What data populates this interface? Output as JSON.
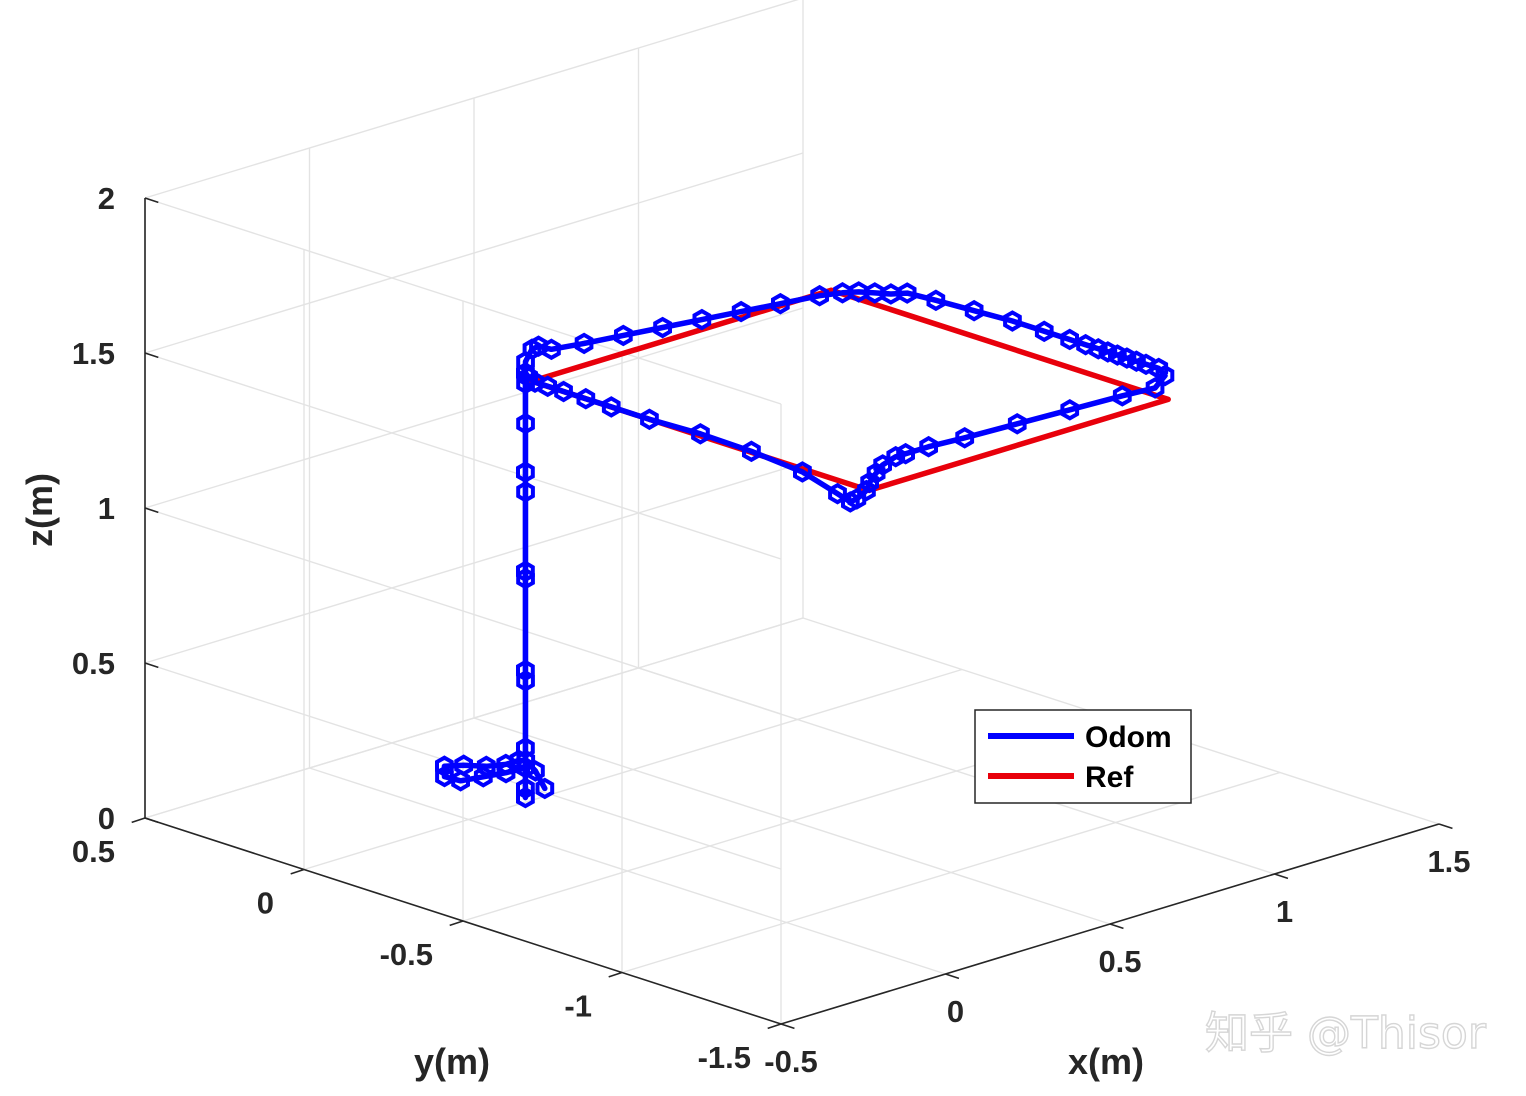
{
  "chart_data": {
    "type": "line",
    "dimensions": "3d",
    "xlabel": "x(m)",
    "ylabel": "y(m)",
    "zlabel": "z(m)",
    "xlim": [
      -0.5,
      1.5
    ],
    "ylim": [
      -1.5,
      0.5
    ],
    "zlim": [
      0,
      2
    ],
    "x_ticks": [
      {
        "value": -0.5,
        "label": "-0.5"
      },
      {
        "value": 0,
        "label": "0"
      },
      {
        "value": 0.5,
        "label": "0.5"
      },
      {
        "value": 1,
        "label": "1"
      },
      {
        "value": 1.5,
        "label": "1.5"
      }
    ],
    "y_ticks": [
      {
        "value": -1.5,
        "label": "-1.5"
      },
      {
        "value": -1,
        "label": "-1"
      },
      {
        "value": -0.5,
        "label": "-0.5"
      },
      {
        "value": 0,
        "label": "0"
      },
      {
        "value": 0.5,
        "label": "0.5"
      }
    ],
    "z_ticks": [
      {
        "value": 0,
        "label": "0"
      },
      {
        "value": 0.5,
        "label": "0.5"
      },
      {
        "value": 1,
        "label": "1"
      },
      {
        "value": 1.5,
        "label": "1.5"
      },
      {
        "value": 2,
        "label": "2"
      }
    ],
    "grid": true,
    "legend_position": "lower-right",
    "series": [
      {
        "name": "Odom",
        "color": "#0000ff",
        "marker": "hexagon",
        "points": [
          [
            0.0,
            -0.24,
            0.18
          ],
          [
            0.01,
            -0.2,
            0.22
          ],
          [
            0.0,
            -0.18,
            0.25
          ],
          [
            -0.04,
            -0.2,
            0.27
          ],
          [
            -0.08,
            -0.2,
            0.27
          ],
          [
            -0.12,
            -0.18,
            0.27
          ],
          [
            -0.15,
            -0.14,
            0.27
          ],
          [
            -0.17,
            -0.1,
            0.26
          ],
          [
            -0.16,
            -0.09,
            0.22
          ],
          [
            -0.14,
            -0.12,
            0.21
          ],
          [
            -0.1,
            -0.15,
            0.22
          ],
          [
            -0.06,
            -0.18,
            0.23
          ],
          [
            -0.02,
            -0.2,
            0.24
          ],
          [
            -0.02,
            -0.2,
            0.52
          ],
          [
            -0.02,
            -0.2,
            0.85
          ],
          [
            -0.02,
            -0.2,
            1.13
          ],
          [
            -0.02,
            -0.2,
            1.35
          ],
          [
            -0.02,
            -0.2,
            1.48
          ],
          [
            -0.02,
            -0.2,
            1.55
          ],
          [
            -0.01,
            -0.21,
            1.59
          ],
          [
            0.0,
            -0.22,
            1.6
          ],
          [
            0.02,
            -0.24,
            1.59
          ],
          [
            0.1,
            -0.26,
            1.59
          ],
          [
            0.2,
            -0.28,
            1.59
          ],
          [
            0.3,
            -0.3,
            1.59
          ],
          [
            0.4,
            -0.32,
            1.59
          ],
          [
            0.5,
            -0.34,
            1.59
          ],
          [
            0.6,
            -0.36,
            1.59
          ],
          [
            0.7,
            -0.38,
            1.59
          ],
          [
            0.75,
            -0.4,
            1.59
          ],
          [
            0.78,
            -0.42,
            1.59
          ],
          [
            0.8,
            -0.45,
            1.59
          ],
          [
            0.82,
            -0.48,
            1.59
          ],
          [
            0.85,
            -0.5,
            1.59
          ],
          [
            0.86,
            -0.58,
            1.59
          ],
          [
            0.87,
            -0.69,
            1.59
          ],
          [
            0.88,
            -0.8,
            1.59
          ],
          [
            0.88,
            -0.9,
            1.59
          ],
          [
            0.88,
            -0.98,
            1.59
          ],
          [
            0.88,
            -1.03,
            1.59
          ],
          [
            0.88,
            -1.07,
            1.59
          ],
          [
            0.88,
            -1.1,
            1.59
          ],
          [
            0.88,
            -1.13,
            1.59
          ],
          [
            0.88,
            -1.16,
            1.59
          ],
          [
            0.88,
            -1.19,
            1.59
          ],
          [
            0.88,
            -1.22,
            1.59
          ],
          [
            0.88,
            -1.26,
            1.59
          ],
          [
            0.87,
            -1.29,
            1.58
          ],
          [
            0.84,
            -1.29,
            1.55
          ],
          [
            0.75,
            -1.28,
            1.55
          ],
          [
            0.6,
            -1.27,
            1.55
          ],
          [
            0.45,
            -1.26,
            1.55
          ],
          [
            0.3,
            -1.25,
            1.55
          ],
          [
            0.2,
            -1.24,
            1.55
          ],
          [
            0.13,
            -1.24,
            1.55
          ],
          [
            0.1,
            -1.24,
            1.55
          ],
          [
            0.07,
            -1.23,
            1.53
          ],
          [
            0.05,
            -1.23,
            1.51
          ],
          [
            0.04,
            -1.22,
            1.48
          ],
          [
            0.04,
            -1.21,
            1.45
          ],
          [
            0.03,
            -1.19,
            1.42
          ],
          [
            0.02,
            -1.18,
            1.41
          ],
          [
            0.01,
            -1.15,
            1.43
          ],
          [
            0.0,
            -1.05,
            1.47
          ],
          [
            -0.01,
            -0.9,
            1.49
          ],
          [
            -0.02,
            -0.75,
            1.5
          ],
          [
            -0.03,
            -0.6,
            1.5
          ],
          [
            -0.03,
            -0.48,
            1.5
          ],
          [
            -0.03,
            -0.4,
            1.5
          ],
          [
            -0.03,
            -0.33,
            1.5
          ],
          [
            -0.03,
            -0.28,
            1.5
          ],
          [
            -0.03,
            -0.24,
            1.5
          ],
          [
            -0.03,
            -0.22,
            1.51
          ],
          [
            -0.03,
            -0.21,
            1.52
          ],
          [
            -0.03,
            -0.21,
            1.2
          ],
          [
            -0.03,
            -0.21,
            0.88
          ],
          [
            -0.03,
            -0.21,
            0.56
          ],
          [
            -0.03,
            -0.21,
            0.31
          ],
          [
            -0.03,
            -0.21,
            0.18
          ],
          [
            -0.03,
            -0.21,
            0.15
          ]
        ]
      },
      {
        "name": "Ref",
        "color": "#e8000b",
        "marker": "none",
        "points": [
          [
            -0.03,
            -0.23,
            1.5
          ],
          [
            0.88,
            -0.23,
            1.5
          ],
          [
            0.88,
            -1.29,
            1.5
          ],
          [
            -0.03,
            -1.29,
            1.5
          ],
          [
            -0.03,
            -0.23,
            1.5
          ]
        ]
      }
    ]
  },
  "watermark": "知乎 @Thisor"
}
